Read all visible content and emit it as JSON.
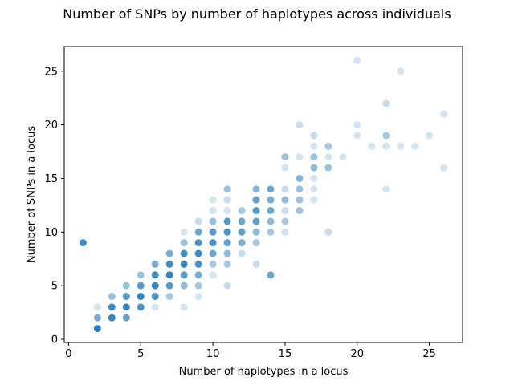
{
  "chart_data": {
    "type": "scatter",
    "title": "Number of SNPs by number of haplotypes across individuals",
    "xlabel": "Number of haplotypes in a locus",
    "ylabel": "Number of SNPs in a locus",
    "xlim": [
      -0.3,
      27.3
    ],
    "ylim": [
      -0.3,
      27.3
    ],
    "xticks": [
      0,
      5,
      10,
      15,
      20,
      25
    ],
    "yticks": [
      0,
      5,
      10,
      15,
      20,
      25
    ],
    "point_color": "#1f77b4",
    "grid": false,
    "points": [
      {
        "x": 1,
        "y": 9,
        "w": 0.85
      },
      {
        "x": 2,
        "y": 1,
        "w": 0.95
      },
      {
        "x": 2,
        "y": 2,
        "w": 0.6
      },
      {
        "x": 2,
        "y": 3,
        "w": 0.2
      },
      {
        "x": 3,
        "y": 2,
        "w": 0.9
      },
      {
        "x": 3,
        "y": 3,
        "w": 0.85
      },
      {
        "x": 3,
        "y": 4,
        "w": 0.45
      },
      {
        "x": 4,
        "y": 2,
        "w": 0.7
      },
      {
        "x": 4,
        "y": 3,
        "w": 0.9
      },
      {
        "x": 4,
        "y": 4,
        "w": 0.75
      },
      {
        "x": 4,
        "y": 5,
        "w": 0.45
      },
      {
        "x": 5,
        "y": 3,
        "w": 0.8
      },
      {
        "x": 5,
        "y": 4,
        "w": 0.9
      },
      {
        "x": 5,
        "y": 5,
        "w": 0.75
      },
      {
        "x": 5,
        "y": 6,
        "w": 0.45
      },
      {
        "x": 6,
        "y": 3,
        "w": 0.2
      },
      {
        "x": 6,
        "y": 4,
        "w": 0.8
      },
      {
        "x": 6,
        "y": 5,
        "w": 0.9
      },
      {
        "x": 6,
        "y": 6,
        "w": 0.85
      },
      {
        "x": 6,
        "y": 7,
        "w": 0.6
      },
      {
        "x": 7,
        "y": 4,
        "w": 0.4
      },
      {
        "x": 7,
        "y": 5,
        "w": 0.75
      },
      {
        "x": 7,
        "y": 6,
        "w": 0.9
      },
      {
        "x": 7,
        "y": 7,
        "w": 0.85
      },
      {
        "x": 7,
        "y": 8,
        "w": 0.6
      },
      {
        "x": 8,
        "y": 3,
        "w": 0.2
      },
      {
        "x": 8,
        "y": 5,
        "w": 0.5
      },
      {
        "x": 8,
        "y": 6,
        "w": 0.75
      },
      {
        "x": 8,
        "y": 7,
        "w": 0.9
      },
      {
        "x": 8,
        "y": 8,
        "w": 0.85
      },
      {
        "x": 8,
        "y": 9,
        "w": 0.45
      },
      {
        "x": 8,
        "y": 10,
        "w": 0.2
      },
      {
        "x": 9,
        "y": 4,
        "w": 0.2
      },
      {
        "x": 9,
        "y": 5,
        "w": 0.4
      },
      {
        "x": 9,
        "y": 6,
        "w": 0.6
      },
      {
        "x": 9,
        "y": 7,
        "w": 0.8
      },
      {
        "x": 9,
        "y": 8,
        "w": 0.85
      },
      {
        "x": 9,
        "y": 9,
        "w": 0.8
      },
      {
        "x": 9,
        "y": 10,
        "w": 0.65
      },
      {
        "x": 9,
        "y": 11,
        "w": 0.25
      },
      {
        "x": 10,
        "y": 6,
        "w": 0.2
      },
      {
        "x": 10,
        "y": 7,
        "w": 0.4
      },
      {
        "x": 10,
        "y": 8,
        "w": 0.65
      },
      {
        "x": 10,
        "y": 9,
        "w": 0.8
      },
      {
        "x": 10,
        "y": 10,
        "w": 0.75
      },
      {
        "x": 10,
        "y": 11,
        "w": 0.45
      },
      {
        "x": 10,
        "y": 12,
        "w": 0.2
      },
      {
        "x": 10,
        "y": 13,
        "w": 0.2
      },
      {
        "x": 11,
        "y": 5,
        "w": 0.25
      },
      {
        "x": 11,
        "y": 7,
        "w": 0.4
      },
      {
        "x": 11,
        "y": 8,
        "w": 0.5
      },
      {
        "x": 11,
        "y": 9,
        "w": 0.7
      },
      {
        "x": 11,
        "y": 10,
        "w": 0.8
      },
      {
        "x": 11,
        "y": 11,
        "w": 0.75
      },
      {
        "x": 11,
        "y": 12,
        "w": 0.2
      },
      {
        "x": 11,
        "y": 13,
        "w": 0.25
      },
      {
        "x": 11,
        "y": 14,
        "w": 0.45
      },
      {
        "x": 12,
        "y": 8,
        "w": 0.25
      },
      {
        "x": 12,
        "y": 9,
        "w": 0.6
      },
      {
        "x": 12,
        "y": 10,
        "w": 0.7
      },
      {
        "x": 12,
        "y": 11,
        "w": 0.65
      },
      {
        "x": 12,
        "y": 12,
        "w": 0.4
      },
      {
        "x": 13,
        "y": 7,
        "w": 0.25
      },
      {
        "x": 13,
        "y": 9,
        "w": 0.4
      },
      {
        "x": 13,
        "y": 10,
        "w": 0.5
      },
      {
        "x": 13,
        "y": 11,
        "w": 0.7
      },
      {
        "x": 13,
        "y": 12,
        "w": 0.75
      },
      {
        "x": 13,
        "y": 13,
        "w": 0.7
      },
      {
        "x": 13,
        "y": 14,
        "w": 0.55
      },
      {
        "x": 14,
        "y": 6,
        "w": 0.65
      },
      {
        "x": 14,
        "y": 10,
        "w": 0.4
      },
      {
        "x": 14,
        "y": 11,
        "w": 0.5
      },
      {
        "x": 14,
        "y": 12,
        "w": 0.65
      },
      {
        "x": 14,
        "y": 13,
        "w": 0.6
      },
      {
        "x": 14,
        "y": 14,
        "w": 0.65
      },
      {
        "x": 15,
        "y": 10,
        "w": 0.2
      },
      {
        "x": 15,
        "y": 11,
        "w": 0.4
      },
      {
        "x": 15,
        "y": 12,
        "w": 0.25
      },
      {
        "x": 15,
        "y": 13,
        "w": 0.5
      },
      {
        "x": 15,
        "y": 14,
        "w": 0.25
      },
      {
        "x": 15,
        "y": 16,
        "w": 0.2
      },
      {
        "x": 15,
        "y": 17,
        "w": 0.45
      },
      {
        "x": 16,
        "y": 12,
        "w": 0.45
      },
      {
        "x": 16,
        "y": 13,
        "w": 0.45
      },
      {
        "x": 16,
        "y": 14,
        "w": 0.45
      },
      {
        "x": 16,
        "y": 15,
        "w": 0.55
      },
      {
        "x": 16,
        "y": 17,
        "w": 0.2
      },
      {
        "x": 16,
        "y": 20,
        "w": 0.25
      },
      {
        "x": 17,
        "y": 13,
        "w": 0.2
      },
      {
        "x": 17,
        "y": 14,
        "w": 0.2
      },
      {
        "x": 17,
        "y": 15,
        "w": 0.2
      },
      {
        "x": 17,
        "y": 16,
        "w": 0.5
      },
      {
        "x": 17,
        "y": 17,
        "w": 0.45
      },
      {
        "x": 17,
        "y": 18,
        "w": 0.2
      },
      {
        "x": 17,
        "y": 19,
        "w": 0.25
      },
      {
        "x": 18,
        "y": 10,
        "w": 0.25
      },
      {
        "x": 18,
        "y": 16,
        "w": 0.45
      },
      {
        "x": 18,
        "y": 17,
        "w": 0.2
      },
      {
        "x": 18,
        "y": 18,
        "w": 0.4
      },
      {
        "x": 19,
        "y": 17,
        "w": 0.2
      },
      {
        "x": 20,
        "y": 19,
        "w": 0.2
      },
      {
        "x": 20,
        "y": 20,
        "w": 0.2
      },
      {
        "x": 20,
        "y": 26,
        "w": 0.2
      },
      {
        "x": 21,
        "y": 18,
        "w": 0.2
      },
      {
        "x": 22,
        "y": 14,
        "w": 0.2
      },
      {
        "x": 22,
        "y": 18,
        "w": 0.2
      },
      {
        "x": 22,
        "y": 19,
        "w": 0.4
      },
      {
        "x": 22,
        "y": 22,
        "w": 0.25
      },
      {
        "x": 23,
        "y": 18,
        "w": 0.2
      },
      {
        "x": 23,
        "y": 25,
        "w": 0.2
      },
      {
        "x": 24,
        "y": 18,
        "w": 0.2
      },
      {
        "x": 25,
        "y": 19,
        "w": 0.2
      },
      {
        "x": 26,
        "y": 16,
        "w": 0.2
      },
      {
        "x": 26,
        "y": 21,
        "w": 0.2
      }
    ]
  }
}
